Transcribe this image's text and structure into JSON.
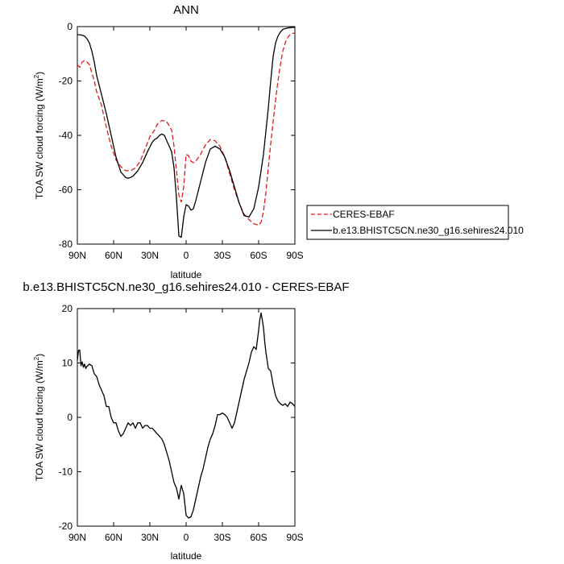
{
  "chart_data": [
    {
      "type": "line",
      "title": "ANN",
      "xlabel": "latitude",
      "ylabel": "TOA SW cloud forcing (W/m",
      "ylabel_sup": "2",
      "ylabel_close": ")",
      "xlim": [
        90,
        -90
      ],
      "ylim": [
        -80,
        0
      ],
      "xticks": [
        90,
        60,
        30,
        0,
        -30,
        -60,
        -90
      ],
      "xtick_labels": [
        "90N",
        "60N",
        "30N",
        "0",
        "30S",
        "60S",
        "90S"
      ],
      "yticks": [
        0,
        -20,
        -40,
        -60,
        -80
      ],
      "ytick_labels": [
        "0",
        "-20",
        "-40",
        "-60",
        "-80"
      ],
      "legend_position": "right",
      "series": [
        {
          "name": "CERES-EBAF",
          "color": "#e41a1c",
          "dash": "dashed",
          "x": [
            90,
            88,
            86,
            84,
            82,
            80,
            78,
            76,
            74,
            70,
            66,
            62,
            58,
            54,
            50,
            46,
            42,
            38,
            34,
            30,
            26,
            24,
            20,
            16,
            12,
            10,
            8,
            6,
            4,
            2,
            0,
            -2,
            -4,
            -6,
            -8,
            -12,
            -16,
            -20,
            -24,
            -28,
            -32,
            -36,
            -40,
            -44,
            -48,
            -52,
            -56,
            -60,
            -62,
            -64,
            -66,
            -68,
            -70,
            -72,
            -74,
            -76,
            -78,
            -80,
            -82,
            -84,
            -86,
            -88,
            -90
          ],
          "values": [
            -14,
            -15,
            -13,
            -12.5,
            -13,
            -14,
            -17,
            -20,
            -24,
            -29,
            -37,
            -44,
            -49,
            -51.5,
            -53,
            -53,
            -52,
            -49.5,
            -45,
            -40.5,
            -38,
            -36,
            -34.5,
            -35,
            -38,
            -44,
            -53,
            -62,
            -64.5,
            -59,
            -47,
            -47.5,
            -49.5,
            -50,
            -49.5,
            -47,
            -43.5,
            -41.5,
            -42,
            -44,
            -48,
            -54,
            -60,
            -65,
            -69,
            -71,
            -72.5,
            -73,
            -72,
            -68,
            -61,
            -52,
            -43,
            -35,
            -27,
            -20,
            -14,
            -9,
            -6,
            -4,
            -3,
            -2.5,
            -2.5
          ]
        },
        {
          "name": "b.e13.BHISTC5CN.ne30_g16.sehires24.010",
          "color": "#000000",
          "dash": "solid",
          "x": [
            90,
            88,
            86,
            84,
            82,
            80,
            78,
            76,
            74,
            70,
            66,
            62,
            58,
            54,
            50,
            48,
            46,
            44,
            42,
            40,
            36,
            32,
            28,
            26,
            24,
            22,
            20,
            18,
            16,
            14,
            12,
            10,
            8,
            6,
            4,
            2,
            0,
            -2,
            -4,
            -6,
            -8,
            -12,
            -16,
            -20,
            -24,
            -28,
            -32,
            -36,
            -40,
            -44,
            -48,
            -52,
            -56,
            -60,
            -64,
            -68,
            -70,
            -72,
            -74,
            -76,
            -78,
            -80,
            -84,
            -88,
            -90
          ],
          "values": [
            -3,
            -3,
            -3.2,
            -3.5,
            -4.5,
            -6,
            -9,
            -13,
            -18,
            -25,
            -32,
            -40,
            -48,
            -53.5,
            -55.5,
            -55.8,
            -55.5,
            -55,
            -54,
            -53,
            -50,
            -46,
            -42.5,
            -41.5,
            -41,
            -40,
            -39.5,
            -40,
            -42,
            -44,
            -46,
            -52,
            -63,
            -77,
            -77.5,
            -70,
            -65.5,
            -66,
            -67.5,
            -67,
            -64,
            -57,
            -50,
            -45,
            -44,
            -45,
            -48,
            -53,
            -59,
            -65,
            -69.5,
            -70,
            -67,
            -59,
            -47,
            -30,
            -20,
            -11,
            -6,
            -3.5,
            -2,
            -1,
            -0.5,
            -0.3,
            -0.3
          ]
        }
      ]
    },
    {
      "type": "line",
      "title": "b.e13.BHISTC5CN.ne30_g16.sehires24.010 - CERES-EBAF",
      "xlabel": "latitude",
      "ylabel": "TOA SW cloud forcing (W/m",
      "ylabel_sup": "2",
      "ylabel_close": ")",
      "xlim": [
        90,
        -90
      ],
      "ylim": [
        -20,
        20
      ],
      "xticks": [
        90,
        60,
        30,
        0,
        -30,
        -60,
        -90
      ],
      "xtick_labels": [
        "90N",
        "60N",
        "30N",
        "0",
        "30S",
        "60S",
        "90S"
      ],
      "yticks": [
        20,
        10,
        0,
        -10,
        -20
      ],
      "ytick_labels": [
        "20",
        "10",
        "0",
        "-10",
        "-20"
      ],
      "series": [
        {
          "color": "#000000",
          "dash": "solid",
          "x": [
            90,
            89,
            88,
            87,
            86,
            85,
            84,
            83,
            82,
            80,
            78,
            76,
            74,
            72,
            70,
            68,
            66,
            64,
            62,
            60,
            58,
            56,
            54,
            52,
            50,
            48,
            46,
            44,
            42,
            40,
            38,
            36,
            34,
            32,
            30,
            28,
            26,
            24,
            22,
            20,
            18,
            16,
            14,
            12,
            10,
            8,
            6,
            4,
            2,
            0,
            -2,
            -4,
            -6,
            -8,
            -10,
            -12,
            -14,
            -16,
            -18,
            -20,
            -22,
            -24,
            -26,
            -28,
            -30,
            -32,
            -34,
            -36,
            -38,
            -40,
            -42,
            -44,
            -46,
            -48,
            -50,
            -52,
            -54,
            -56,
            -58,
            -60,
            -61,
            -62,
            -63,
            -64,
            -65,
            -66,
            -68,
            -70,
            -72,
            -74,
            -76,
            -78,
            -80,
            -82,
            -84,
            -86,
            -88,
            -90
          ],
          "values": [
            10.5,
            12.3,
            12.4,
            9.5,
            10.2,
            9.2,
            9.8,
            9,
            9.4,
            9.8,
            9.5,
            8,
            7.5,
            6,
            5,
            4,
            2,
            2,
            0,
            -1,
            -1,
            -2.5,
            -3.5,
            -3,
            -2,
            -1,
            -1.5,
            -1,
            -2,
            -1,
            -1,
            -2,
            -1.5,
            -1.5,
            -2,
            -2,
            -2.5,
            -3,
            -3.5,
            -4,
            -5,
            -6.5,
            -8,
            -10,
            -12,
            -13,
            -15,
            -12.5,
            -14,
            -18,
            -18.5,
            -18.3,
            -17,
            -15,
            -13,
            -11,
            -9.5,
            -7.5,
            -5.5,
            -4,
            -3,
            -1.5,
            0.5,
            0.5,
            0.8,
            0.5,
            0,
            -1,
            -2,
            -1,
            1,
            3,
            5,
            7,
            8.5,
            10,
            12,
            13,
            12.5,
            16,
            18,
            19.2,
            18,
            16.5,
            14,
            12,
            9,
            8.5,
            6,
            4,
            3,
            2.5,
            2.2,
            2.5,
            2,
            2.8,
            2.5,
            2
          ]
        }
      ]
    }
  ]
}
